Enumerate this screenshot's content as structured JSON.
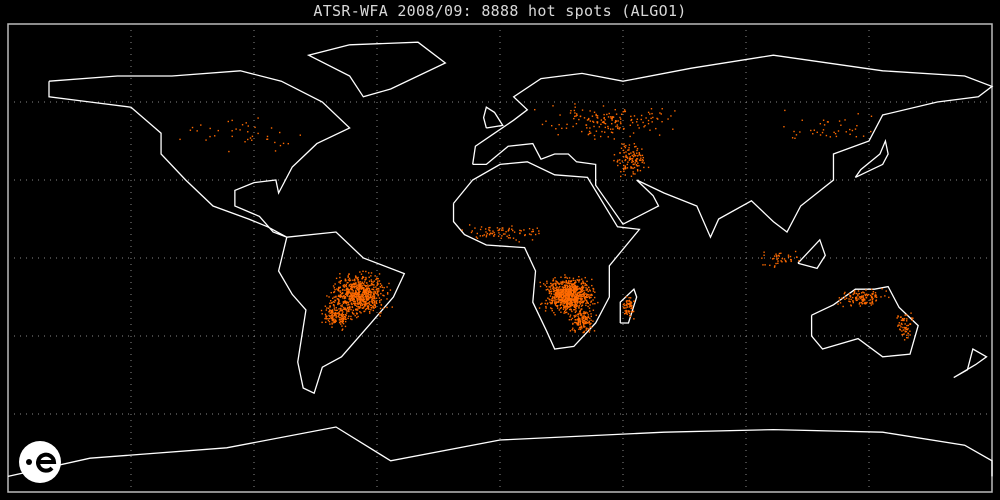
{
  "title": "ATSR-WFA 2008/09: 8888 hot spots (ALGO1)",
  "map": {
    "projection": "equirectangular",
    "graticule_step_deg": 45,
    "graticule_lat_step_deg": 30,
    "hotspot_count": 8888,
    "colors": {
      "background": "#000000",
      "coastline": "#ffffff",
      "grid": "#888888",
      "hotspot": "#ff6a00",
      "frame": "#bbbbbb"
    },
    "logo": "esa-logo"
  }
}
